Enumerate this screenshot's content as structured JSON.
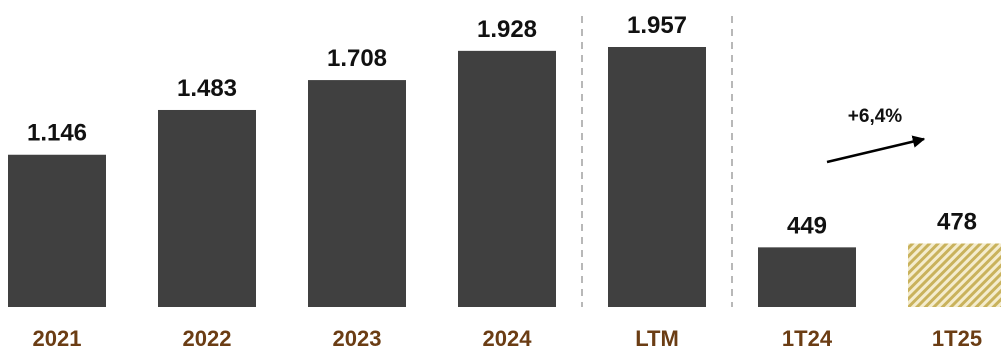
{
  "chart_data": {
    "type": "bar",
    "categories": [
      "2021",
      "2022",
      "2023",
      "2024",
      "LTM",
      "1T24",
      "1T25"
    ],
    "values": [
      1146,
      1483,
      1708,
      1928,
      1957,
      449,
      478
    ],
    "value_labels": [
      "1.146",
      "1.483",
      "1.708",
      "1.928",
      "1.957",
      "449",
      "478"
    ],
    "styles": [
      "solid",
      "solid",
      "solid",
      "solid",
      "solid",
      "solid",
      "hatched"
    ],
    "annotation": {
      "text": "+6,4%",
      "from": "1T24",
      "to": "1T25"
    },
    "separators_after": [
      "2024",
      "LTM"
    ],
    "title": "",
    "xlabel": "",
    "ylabel": "",
    "grid": false,
    "legend": "none"
  },
  "colors": {
    "bar": "#404040",
    "hatch_light": "#f4eccd",
    "hatch_dark": "#c9b25c",
    "category_label": "#6b3d14",
    "value_label": "#111111",
    "separator": "#b8b8b8",
    "arrow": "#000000"
  }
}
